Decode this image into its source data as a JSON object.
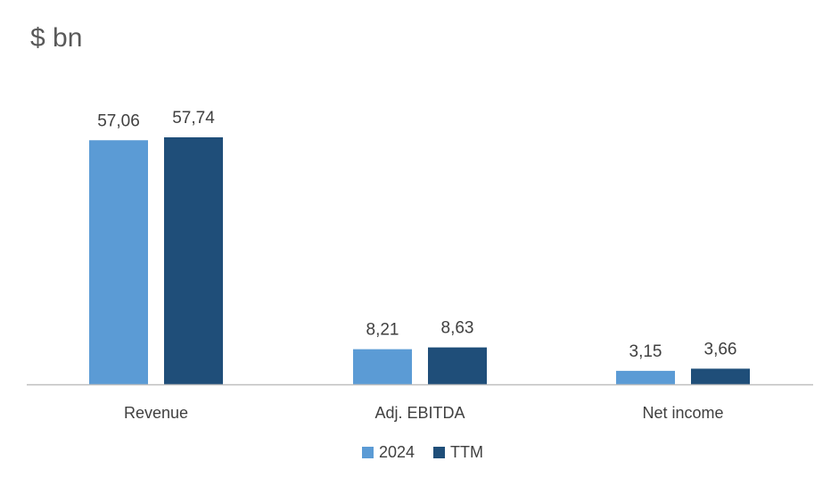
{
  "chart_data": {
    "type": "bar",
    "unit_label": "$ bn",
    "categories": [
      "Revenue",
      "Adj. EBITDA",
      "Net income"
    ],
    "series": [
      {
        "name": "2024",
        "values": [
          57.06,
          8.21,
          3.15
        ],
        "labels": [
          "57,06",
          "8,21",
          "3,15"
        ],
        "color": "#5b9bd5"
      },
      {
        "name": "TTM",
        "values": [
          57.74,
          8.63,
          3.66
        ],
        "labels": [
          "57,74",
          "8,63",
          "3,66"
        ],
        "color": "#1f4e79"
      }
    ],
    "ylim": [
      0,
      60
    ],
    "grid": false,
    "legend_position": "bottom"
  }
}
